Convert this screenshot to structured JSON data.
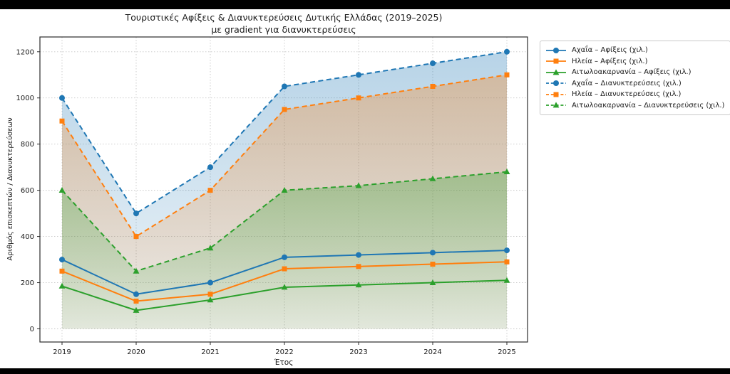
{
  "colors": {
    "blue": "#1f77b4",
    "orange": "#ff7f0e",
    "green": "#2ca02c",
    "text": "#1a1a1a",
    "grid": "#c7c7c7",
    "spine": "#2b2b2b",
    "legend_border": "#c9c9c9",
    "background": "#ffffff",
    "letterbox": "#000000"
  },
  "chart_data": {
    "type": "line",
    "title": "Τουριστικές Αφίξεις & Διανυκτερεύσεις Δυτικής Ελλάδας (2019–2025)",
    "subtitle": "με gradient για διανυκτερεύσεις",
    "xlabel": "Έτος",
    "ylabel": "Αριθμός επισκεπτών / Διανυκτερεύσεων",
    "x": [
      2019,
      2020,
      2021,
      2022,
      2023,
      2024,
      2025
    ],
    "yticks": [
      0,
      200,
      400,
      600,
      800,
      1000,
      1200
    ],
    "ylim": [
      -57,
      1264
    ],
    "grid": true,
    "legend_position": "upper right outside",
    "series": [
      {
        "name": "Αχαΐα – Αφίξεις (χιλ.)",
        "color": "#1f77b4",
        "linestyle": "solid",
        "marker": "circle",
        "fill_gradient": false,
        "values": [
          300,
          150,
          200,
          310,
          320,
          330,
          340
        ]
      },
      {
        "name": "Ηλεία – Αφίξεις (χιλ.)",
        "color": "#ff7f0e",
        "linestyle": "solid",
        "marker": "square",
        "fill_gradient": false,
        "values": [
          250,
          120,
          150,
          260,
          270,
          280,
          290
        ]
      },
      {
        "name": "Αιτωλοακαρνανία – Αφίξεις (χιλ.)",
        "color": "#2ca02c",
        "linestyle": "solid",
        "marker": "triangle",
        "fill_gradient": false,
        "values": [
          185,
          80,
          125,
          180,
          190,
          200,
          210
        ]
      },
      {
        "name": "Αχαΐα – Διανυκτερεύσεις (χιλ.)",
        "color": "#1f77b4",
        "linestyle": "dashed",
        "marker": "circle",
        "fill_gradient": true,
        "values": [
          1000,
          500,
          700,
          1050,
          1100,
          1150,
          1200
        ]
      },
      {
        "name": "Ηλεία – Διανυκτερεύσεις (χιλ.)",
        "color": "#ff7f0e",
        "linestyle": "dashed",
        "marker": "square",
        "fill_gradient": true,
        "values": [
          900,
          400,
          600,
          950,
          1000,
          1050,
          1100
        ]
      },
      {
        "name": "Αιτωλοακαρνανία – Διανυκτερεύσεις (χιλ.)",
        "color": "#2ca02c",
        "linestyle": "dashed",
        "marker": "triangle",
        "fill_gradient": true,
        "values": [
          600,
          250,
          350,
          600,
          620,
          650,
          680
        ]
      }
    ]
  }
}
